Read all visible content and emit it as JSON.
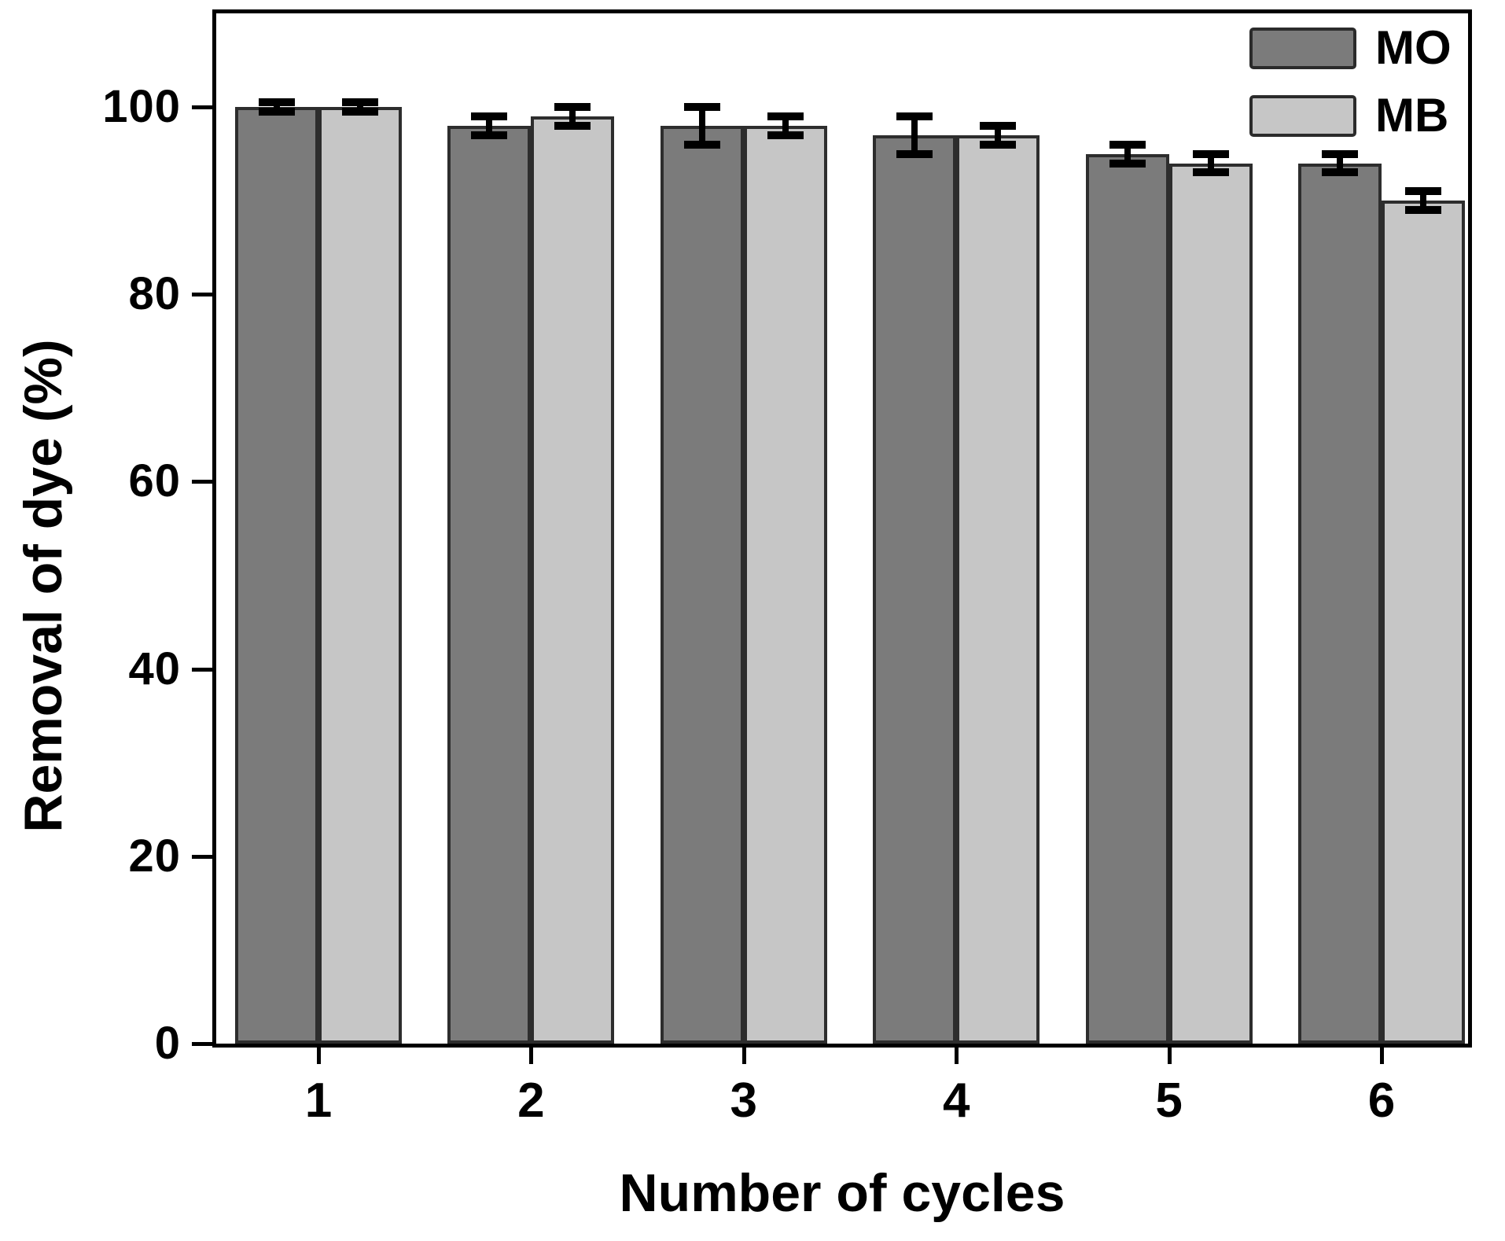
{
  "figure": {
    "background": "#ffffff"
  },
  "chart_data": {
    "type": "bar",
    "title": "",
    "xlabel": "Number of cycles",
    "ylabel": "Removal of dye (%)",
    "categories": [
      "1",
      "2",
      "3",
      "4",
      "5",
      "6"
    ],
    "series": [
      {
        "name": "MO",
        "color": "#7b7b7b",
        "values": [
          100,
          98,
          98,
          97,
          95,
          94
        ],
        "errors": [
          0.5,
          1,
          2,
          2,
          1,
          1
        ]
      },
      {
        "name": "MB",
        "color": "#c6c6c6",
        "values": [
          100,
          99,
          98,
          97,
          94,
          90
        ],
        "errors": [
          0.5,
          1,
          1,
          1,
          1,
          1
        ]
      }
    ],
    "ylim": [
      0,
      110
    ],
    "yticks": [
      "0",
      "20",
      "40",
      "60",
      "80",
      "100"
    ],
    "grid": false,
    "legend_position": "top-right",
    "bar_border_color": "#2d2d2d",
    "error_bar_color": "#000000",
    "axis_color": "#000000"
  }
}
